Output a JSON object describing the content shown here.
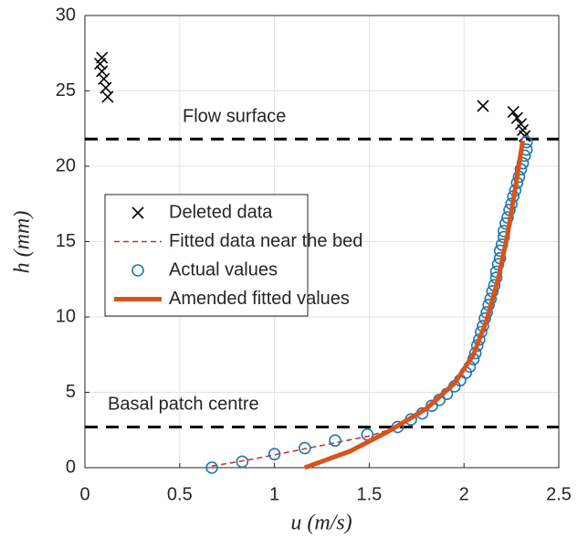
{
  "chart_data": {
    "type": "line",
    "xlabel": "u (m/s)",
    "ylabel": "h (mm)",
    "xlim": [
      0,
      2.5
    ],
    "ylim": [
      0,
      30
    ],
    "xticks": [
      0,
      0.5,
      1,
      1.5,
      2,
      2.5
    ],
    "yticks": [
      0,
      5,
      10,
      15,
      20,
      25,
      30
    ],
    "grid": true,
    "legend": "left",
    "annotations": [
      {
        "text": "Flow surface",
        "y": 21.8
      },
      {
        "text": "Basal patch centre",
        "y": 2.7
      }
    ],
    "series": [
      {
        "name": "Deleted data",
        "color": "#000000",
        "style": "x",
        "x": [
          0.09,
          0.08,
          0.09,
          0.1,
          0.11,
          0.12,
          2.1,
          2.26,
          2.28,
          2.3,
          2.31,
          2.32
        ],
        "values": [
          27.2,
          26.8,
          26.3,
          25.8,
          25.2,
          24.6,
          24.0,
          23.6,
          23.2,
          22.8,
          22.4,
          22.0
        ]
      },
      {
        "name": "Fitted data near the bed",
        "color": "#c0392b",
        "style": "dashed",
        "x": [
          0.67,
          0.9,
          1.1,
          1.3,
          1.5,
          1.65
        ],
        "values": [
          0.1,
          0.6,
          1.1,
          1.6,
          2.1,
          2.7
        ]
      },
      {
        "name": "Actual values",
        "color": "#1f77b4",
        "style": "circle",
        "x": [
          0.67,
          0.83,
          1.0,
          1.16,
          1.32,
          1.49,
          1.65,
          1.72,
          1.78,
          1.83,
          1.87,
          1.91,
          1.95,
          1.98,
          2.01,
          2.03,
          2.05,
          2.06,
          2.07,
          2.08,
          2.09,
          2.1,
          2.11,
          2.12,
          2.13,
          2.14,
          2.15,
          2.16,
          2.17,
          2.17,
          2.18,
          2.19,
          2.19,
          2.2,
          2.21,
          2.21,
          2.22,
          2.23,
          2.24,
          2.25,
          2.26,
          2.27,
          2.28,
          2.29,
          2.3,
          2.31,
          2.32,
          2.33,
          2.33
        ],
        "values": [
          0,
          0.4,
          0.9,
          1.3,
          1.8,
          2.2,
          2.7,
          3.2,
          3.6,
          4.1,
          4.5,
          4.9,
          5.4,
          5.8,
          6.3,
          6.7,
          7.2,
          7.6,
          8.1,
          8.5,
          9.0,
          9.4,
          9.9,
          10.3,
          10.8,
          11.2,
          11.7,
          12.1,
          12.6,
          13.0,
          13.5,
          13.9,
          14.4,
          14.8,
          15.3,
          15.7,
          16.2,
          16.6,
          17.1,
          17.5,
          18.0,
          18.4,
          18.9,
          19.3,
          19.8,
          20.2,
          20.7,
          21.1,
          21.6
        ]
      },
      {
        "name": "Amended fitted values",
        "color": "#d95319",
        "style": "thick",
        "x": [
          1.16,
          1.4,
          1.6,
          1.8,
          1.95,
          2.05,
          2.12,
          2.18,
          2.23,
          2.27,
          2.31
        ],
        "values": [
          0,
          1.1,
          2.4,
          3.9,
          5.6,
          7.5,
          9.8,
          12.5,
          15.5,
          18.5,
          21.7
        ]
      }
    ]
  }
}
